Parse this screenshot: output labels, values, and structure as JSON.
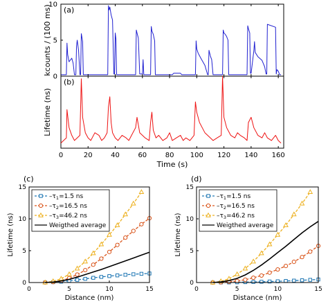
{
  "chart_data": [
    {
      "panel": "(a)",
      "type": "line",
      "ylabel": "kcounts / (100 ms)",
      "xlabel": "",
      "xlim": [
        0,
        164
      ],
      "ylim": [
        0,
        10
      ],
      "yticks": [
        0,
        5,
        10
      ],
      "xticks": [
        0,
        20,
        40,
        60,
        80,
        100,
        120,
        140,
        160
      ],
      "grid": false,
      "series": [
        {
          "color": "#1f1fd0",
          "x": [
            0,
            4,
            4.5,
            5,
            6,
            8,
            9,
            10,
            11,
            11.5,
            12,
            13,
            14,
            14.5,
            15,
            16,
            16.5,
            17,
            34.5,
            35,
            35.5,
            36,
            37,
            38,
            39,
            39.5,
            40,
            40.5,
            41,
            55,
            55.5,
            56,
            57,
            58,
            60,
            60.5,
            61,
            66,
            66.5,
            67,
            68,
            69,
            69.5,
            70,
            82,
            83,
            88,
            89,
            99,
            99.5,
            100,
            101,
            103,
            106,
            108,
            108.5,
            109,
            110,
            111,
            112,
            119,
            119.5,
            120,
            121,
            122,
            123,
            123.5,
            124,
            137,
            137.5,
            138,
            139,
            139.5,
            140,
            142,
            142.5,
            143,
            145,
            148,
            150,
            151,
            151.5,
            152,
            158,
            158.5,
            159,
            160,
            161,
            162
          ],
          "y": [
            0.2,
            0.2,
            4.6,
            3.0,
            2.0,
            2.5,
            1.8,
            0.2,
            0.2,
            4.2,
            5.0,
            3.6,
            0.2,
            0.2,
            5.9,
            4.8,
            0.2,
            0.2,
            0.2,
            9.8,
            9.2,
            9.6,
            8.5,
            7.8,
            0.3,
            0.3,
            6.0,
            5.2,
            0.2,
            0.2,
            6.4,
            6.0,
            5.3,
            0.3,
            0.3,
            2.3,
            0.2,
            0.2,
            6.9,
            6.3,
            5.8,
            4.9,
            0.2,
            0.2,
            0.2,
            0.4,
            0.4,
            0.2,
            0.2,
            4.9,
            3.8,
            3.2,
            2.5,
            1.5,
            0.2,
            0.2,
            3.6,
            2.8,
            2.3,
            0.2,
            0.2,
            6.4,
            6.0,
            5.8,
            5.5,
            5.0,
            0.2,
            0.2,
            0.2,
            7.0,
            6.6,
            6.0,
            0.4,
            0.4,
            3.5,
            4.8,
            3.3,
            2.7,
            2.2,
            1.3,
            0.3,
            0.3,
            7.2,
            6.8,
            0.3,
            0.9,
            0.7,
            0.2,
            0.2
          ]
        }
      ]
    },
    {
      "panel": "(b)",
      "type": "line",
      "ylabel": "Lifetime (ns)",
      "xlabel": "Time (s)",
      "xlim": [
        0,
        164
      ],
      "ylim": [
        0,
        28
      ],
      "xticks": [
        0,
        20,
        40,
        60,
        80,
        100,
        120,
        140,
        160
      ],
      "series": [
        {
          "color": "#ee1111",
          "x": [
            0,
            2,
            4,
            4.5,
            6,
            8,
            10,
            12,
            14,
            15,
            16,
            18,
            20,
            22,
            25,
            28,
            30,
            32,
            34,
            35,
            36,
            37,
            38,
            40,
            42,
            45,
            48,
            50,
            52,
            55,
            56,
            58,
            60,
            62,
            65,
            66,
            67,
            68,
            70,
            72,
            75,
            78,
            80,
            82,
            85,
            88,
            90,
            92,
            95,
            98,
            99,
            100,
            102,
            104,
            106,
            108,
            110,
            112,
            115,
            118,
            119,
            120,
            122,
            125,
            128,
            130,
            132,
            135,
            137,
            138,
            140,
            142,
            145,
            148,
            150,
            152,
            155,
            158,
            160,
            162
          ],
          "y": [
            2,
            3,
            4,
            15,
            8,
            5,
            3,
            4,
            5,
            27,
            12,
            6,
            4,
            3,
            6,
            5,
            3,
            4,
            6,
            16,
            20,
            10,
            6,
            4,
            3,
            5,
            4,
            3,
            5,
            8,
            12,
            6,
            5,
            4,
            3,
            10,
            14,
            7,
            4,
            5,
            3,
            4,
            6,
            3,
            4,
            5,
            3,
            4,
            3,
            5,
            18,
            14,
            10,
            8,
            6,
            5,
            4,
            3,
            4,
            5,
            28,
            12,
            8,
            5,
            4,
            6,
            5,
            4,
            3,
            10,
            12,
            8,
            5,
            4,
            6,
            4,
            3,
            5,
            3,
            2
          ]
        }
      ]
    },
    {
      "panel": "(c)",
      "type": "line",
      "xlabel": "Distance (nm)",
      "ylabel": "Lifetime (ns)",
      "xlim": [
        0,
        15
      ],
      "ylim": [
        0,
        15
      ],
      "xticks": [
        0,
        5,
        10,
        15
      ],
      "yticks": [
        0,
        5,
        10,
        15
      ],
      "legend": "top-left",
      "series": [
        {
          "name": "τ1=1.5 ns",
          "tau": "1",
          "value": "1.5 ns",
          "color": "#1f77b4",
          "marker": "square",
          "dashed": true,
          "x": [
            2,
            3,
            4,
            5,
            6,
            7,
            8,
            9,
            10,
            11,
            12,
            13,
            14,
            15
          ],
          "y": [
            0.01,
            0.06,
            0.14,
            0.27,
            0.42,
            0.58,
            0.74,
            0.88,
            1.01,
            1.12,
            1.22,
            1.3,
            1.37,
            1.42
          ]
        },
        {
          "name": "τ2=16.5 ns",
          "tau": "2",
          "value": "16.5 ns",
          "color": "#d95319",
          "marker": "circle",
          "dashed": true,
          "x": [
            2,
            3,
            4,
            5,
            6,
            7,
            8,
            9,
            10,
            11,
            12,
            13,
            14,
            15
          ],
          "y": [
            0.01,
            0.08,
            0.3,
            0.7,
            1.25,
            1.95,
            2.8,
            3.75,
            4.8,
            5.9,
            7.05,
            8.1,
            9.15,
            10.1
          ]
        },
        {
          "name": "τ3=46.2 ns",
          "tau": "3",
          "value": "46.2 ns",
          "color": "#edb120",
          "marker": "triangle",
          "dashed": true,
          "x": [
            2,
            3,
            4,
            5,
            6,
            7,
            8,
            9,
            10,
            11,
            12,
            13,
            14
          ],
          "y": [
            0.01,
            0.2,
            0.6,
            1.3,
            2.2,
            3.3,
            4.6,
            6.0,
            7.5,
            9.0,
            10.7,
            12.4,
            14.2
          ]
        },
        {
          "name": "Weigthed average",
          "color": "#000000",
          "marker": "none",
          "dashed": false,
          "x": [
            2,
            3,
            4,
            5,
            6,
            7,
            8,
            9,
            10,
            11,
            12,
            13,
            14,
            15
          ],
          "y": [
            0.01,
            0.08,
            0.25,
            0.5,
            0.85,
            1.25,
            1.65,
            2.05,
            2.5,
            2.95,
            3.4,
            3.85,
            4.3,
            4.75
          ]
        }
      ]
    },
    {
      "panel": "(d)",
      "type": "line",
      "xlabel": "Distance (nm)",
      "ylabel": "Lifetime (ns)",
      "xlim": [
        0,
        15
      ],
      "ylim": [
        0,
        15
      ],
      "xticks": [
        0,
        5,
        10,
        15
      ],
      "yticks": [
        0,
        5,
        10,
        15
      ],
      "legend": "top-left",
      "series": [
        {
          "name": "τ1=1.5 ns",
          "tau": "1",
          "value": "1.5 ns",
          "color": "#1f77b4",
          "marker": "square",
          "dashed": true,
          "x": [
            2,
            3,
            4,
            5,
            6,
            7,
            8,
            9,
            10,
            11,
            12,
            13,
            14,
            15
          ],
          "y": [
            0.0,
            0.01,
            0.02,
            0.04,
            0.06,
            0.09,
            0.12,
            0.16,
            0.2,
            0.25,
            0.3,
            0.36,
            0.42,
            0.48
          ]
        },
        {
          "name": "τ2=16.5 ns",
          "tau": "2",
          "value": "16.5 ns",
          "color": "#d95319",
          "marker": "circle",
          "dashed": true,
          "x": [
            2,
            3,
            4,
            5,
            6,
            7,
            8,
            9,
            10,
            11,
            12,
            13,
            14,
            15
          ],
          "y": [
            0.0,
            0.04,
            0.12,
            0.25,
            0.45,
            0.75,
            1.1,
            1.55,
            2.05,
            2.6,
            3.25,
            4.0,
            4.85,
            5.75
          ]
        },
        {
          "name": "τ3=46.2 ns",
          "tau": "3",
          "value": "46.2 ns",
          "color": "#edb120",
          "marker": "triangle",
          "dashed": true,
          "x": [
            2,
            3,
            4,
            5,
            6,
            7,
            8,
            9,
            10,
            11,
            12,
            13,
            14
          ],
          "y": [
            0.0,
            0.2,
            0.6,
            1.3,
            2.2,
            3.3,
            4.6,
            6.0,
            7.5,
            9.0,
            10.7,
            12.4,
            14.2
          ]
        },
        {
          "name": "Weigthed average",
          "color": "#000000",
          "marker": "none",
          "dashed": false,
          "x": [
            2,
            3,
            4,
            5,
            6,
            7,
            8,
            9,
            10,
            11,
            12,
            13,
            14,
            15
          ],
          "y": [
            0.0,
            0.1,
            0.3,
            0.65,
            1.2,
            1.9,
            2.75,
            3.7,
            4.7,
            5.7,
            6.75,
            7.8,
            8.75,
            9.6
          ]
        }
      ]
    }
  ]
}
